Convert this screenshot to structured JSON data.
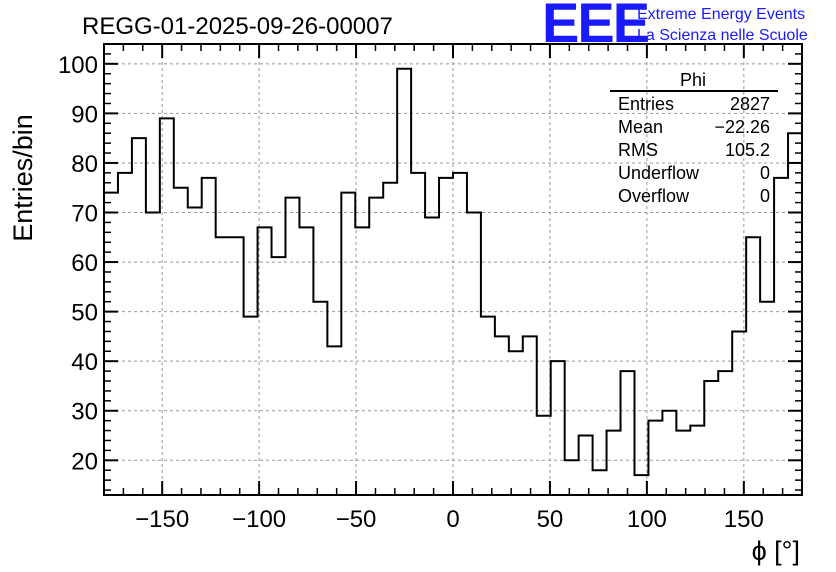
{
  "chart_data": {
    "type": "bar",
    "title": "REGG-01-2025-09-26-00007",
    "xlabel": "ϕ [°]",
    "ylabel": "Entries/bin",
    "xlim": [
      -180,
      180
    ],
    "ylim": [
      13,
      104
    ],
    "xticks": [
      -150,
      -100,
      -50,
      0,
      50,
      100,
      150
    ],
    "xtick_labels": [
      "−150",
      "−100",
      "−50",
      "0",
      "50",
      "100",
      "150"
    ],
    "yticks": [
      20,
      30,
      40,
      50,
      60,
      70,
      80,
      90,
      100
    ],
    "ytick_labels": [
      "20",
      "30",
      "40",
      "50",
      "60",
      "70",
      "80",
      "90",
      "100"
    ],
    "grid": true,
    "bin_edges_start": -180,
    "bin_width": 7.2,
    "values": [
      74,
      78,
      85,
      70,
      89,
      75,
      71,
      77,
      65,
      65,
      49,
      67,
      61,
      73,
      67,
      52,
      43,
      74,
      67,
      73,
      76,
      99,
      78,
      69,
      77,
      78,
      70,
      49,
      45,
      42,
      45,
      29,
      40,
      20,
      25,
      18,
      26,
      38,
      17,
      28,
      30,
      26,
      27,
      36,
      38,
      46,
      65,
      52,
      77,
      86
    ],
    "stats_box": {
      "title": "Phi",
      "rows": [
        {
          "label": "Entries",
          "value": "2827"
        },
        {
          "label": "Mean",
          "value": "−22.26"
        },
        {
          "label": "RMS",
          "value": "105.2"
        },
        {
          "label": "Underflow",
          "value": "0"
        },
        {
          "label": "Overflow",
          "value": "0"
        }
      ]
    }
  },
  "logo": {
    "mark": "EEE",
    "line1": "Extreme Energy Events",
    "line2": "La Scienza nelle Scuole",
    "color": "#1a1aff"
  }
}
